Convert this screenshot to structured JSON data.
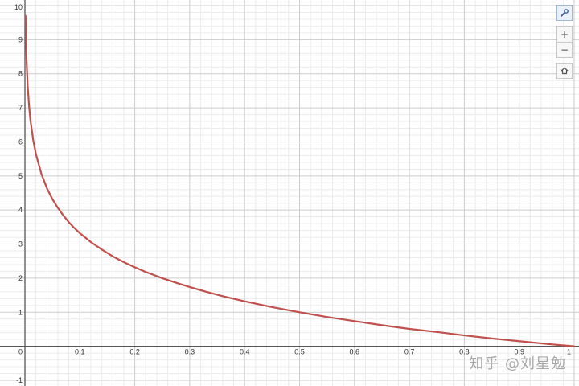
{
  "toolbar": {
    "settings_icon": "wrench-icon",
    "zoom_in_label": "+",
    "zoom_out_label": "−",
    "home_icon": "home-icon"
  },
  "watermark": {
    "text": "知乎 @刘星勉"
  },
  "colors": {
    "curve": "#c0504d",
    "major_grid": "#cccccc",
    "minor_grid": "#ececec",
    "axis": "#555555",
    "toolbar_active": "#eaf1fb"
  },
  "chart_data": {
    "type": "line",
    "title": "",
    "xlabel": "",
    "ylabel": "",
    "xlim": [
      0,
      1
    ],
    "ylim": [
      -1,
      10
    ],
    "grid": true,
    "x_ticks": [
      {
        "value": 0,
        "label": "0"
      },
      {
        "value": 0.1,
        "label": "0.1"
      },
      {
        "value": 0.2,
        "label": "0.2"
      },
      {
        "value": 0.3,
        "label": "0.3"
      },
      {
        "value": 0.4,
        "label": "0.4"
      },
      {
        "value": 0.5,
        "label": "0.5"
      },
      {
        "value": 0.6,
        "label": "0.6"
      },
      {
        "value": 0.7,
        "label": "0.7"
      },
      {
        "value": 0.8,
        "label": "0.8"
      },
      {
        "value": 0.9,
        "label": "0.9"
      },
      {
        "value": 1,
        "label": "1"
      }
    ],
    "y_ticks": [
      {
        "value": -1,
        "label": "-1"
      },
      {
        "value": 1,
        "label": "1"
      },
      {
        "value": 2,
        "label": "2"
      },
      {
        "value": 3,
        "label": "3"
      },
      {
        "value": 4,
        "label": "4"
      },
      {
        "value": 5,
        "label": "5"
      },
      {
        "value": 6,
        "label": "6"
      },
      {
        "value": 7,
        "label": "7"
      },
      {
        "value": 8,
        "label": "8"
      },
      {
        "value": 9,
        "label": "9"
      },
      {
        "value": 10,
        "label": "10"
      }
    ],
    "series": [
      {
        "color": "#c0504d",
        "points": [
          [
            0.0012,
            9.7
          ],
          [
            0.002,
            8.97
          ],
          [
            0.003,
            8.38
          ],
          [
            0.005,
            7.64
          ],
          [
            0.0075,
            7.06
          ],
          [
            0.01,
            6.64
          ],
          [
            0.015,
            6.06
          ],
          [
            0.02,
            5.64
          ],
          [
            0.03,
            5.06
          ],
          [
            0.04,
            4.64
          ],
          [
            0.05,
            4.32
          ],
          [
            0.06,
            4.06
          ],
          [
            0.07,
            3.84
          ],
          [
            0.08,
            3.64
          ],
          [
            0.09,
            3.47
          ],
          [
            0.1,
            3.32
          ],
          [
            0.12,
            3.06
          ],
          [
            0.14,
            2.84
          ],
          [
            0.16,
            2.64
          ],
          [
            0.18,
            2.47
          ],
          [
            0.2,
            2.32
          ],
          [
            0.22,
            2.18
          ],
          [
            0.25,
            2.0
          ],
          [
            0.28,
            1.84
          ],
          [
            0.3,
            1.74
          ],
          [
            0.33,
            1.6
          ],
          [
            0.36,
            1.47
          ],
          [
            0.4,
            1.32
          ],
          [
            0.45,
            1.15
          ],
          [
            0.5,
            1.0
          ],
          [
            0.55,
            0.86
          ],
          [
            0.6,
            0.74
          ],
          [
            0.65,
            0.62
          ],
          [
            0.7,
            0.51
          ],
          [
            0.75,
            0.42
          ],
          [
            0.8,
            0.32
          ],
          [
            0.85,
            0.23
          ],
          [
            0.9,
            0.15
          ],
          [
            0.95,
            0.07
          ],
          [
            1.0,
            0.0
          ]
        ]
      }
    ]
  }
}
